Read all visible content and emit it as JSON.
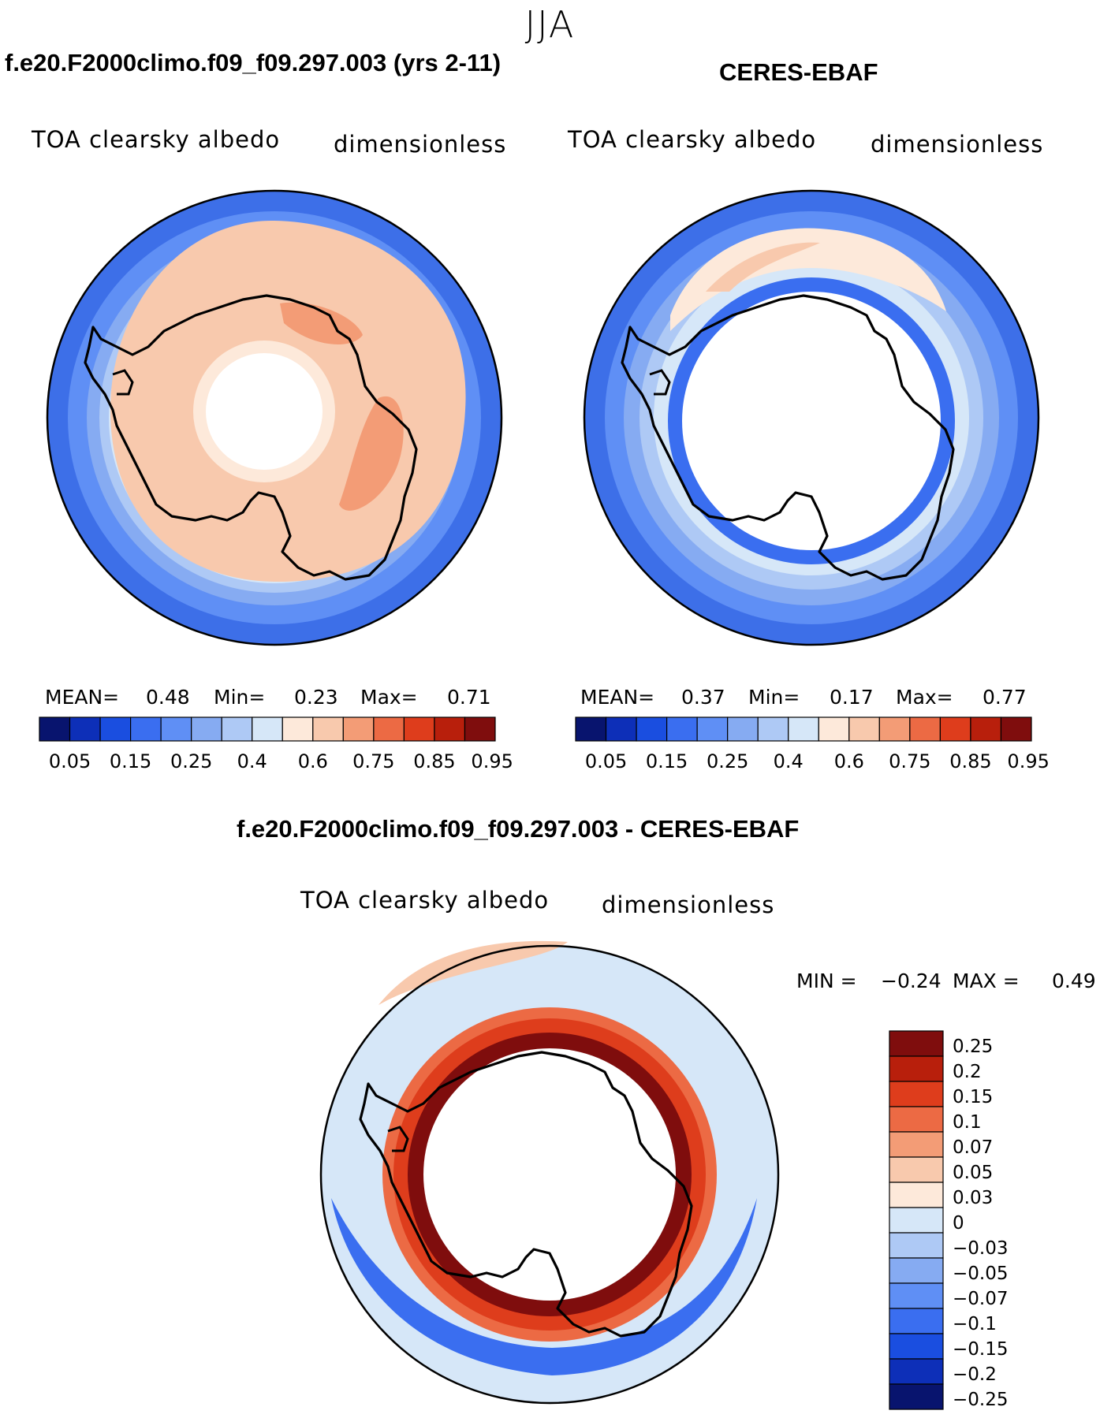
{
  "season": "JJA",
  "panels": [
    {
      "title": "f.e20.F2000climo.f09_f09.297.003 (yrs 2-11)",
      "variable": "TOA clearsky albedo",
      "units": "dimensionless",
      "stats": {
        "mean_label": "MEAN=",
        "mean": "0.48",
        "min_label": "Min=",
        "min": "0.23",
        "max_label": "Max=",
        "max": "0.71"
      }
    },
    {
      "title": "CERES-EBAF",
      "variable": "TOA clearsky albedo",
      "units": "dimensionless",
      "stats": {
        "mean_label": "MEAN=",
        "mean": "0.37",
        "min_label": "Min=",
        "min": "0.17",
        "max_label": "Max=",
        "max": "0.77"
      }
    }
  ],
  "diff_panel": {
    "title": "f.e20.F2000climo.f09_f09.297.003 - CERES-EBAF",
    "variable": "TOA clearsky albedo",
    "units": "dimensionless",
    "stats": {
      "min_label": "MIN =",
      "min": "−0.24",
      "max_label": "MAX =",
      "max": "0.49"
    }
  },
  "colorbar_abs": {
    "colors": [
      "#08146e",
      "#0d2fb8",
      "#1a4ee0",
      "#3a6ef0",
      "#5f8ff5",
      "#86abf2",
      "#aec9f5",
      "#d6e7f8",
      "#fde9da",
      "#f8c9ad",
      "#f39c76",
      "#ec6a44",
      "#de3d1c",
      "#b81f0c",
      "#7f0d0d"
    ],
    "ticks": [
      "0.05",
      "0.15",
      "0.25",
      "0.4",
      "0.6",
      "0.75",
      "0.85",
      "0.95"
    ]
  },
  "colorbar_diff": {
    "colors": [
      "#7f0d0d",
      "#b81f0c",
      "#de3d1c",
      "#ec6a44",
      "#f39c76",
      "#f8c9ad",
      "#fde9da",
      "#d6e7f8",
      "#aec9f5",
      "#86abf2",
      "#5f8ff5",
      "#3a6ef0",
      "#1a4ee0",
      "#0d2fb8",
      "#08146e"
    ],
    "ticks": [
      "0.25",
      "0.2",
      "0.15",
      "0.1",
      "0.07",
      "0.05",
      "0.03",
      "0",
      "−0.03",
      "−0.05",
      "−0.07",
      "−0.1",
      "−0.15",
      "−0.2",
      "−0.25"
    ]
  }
}
